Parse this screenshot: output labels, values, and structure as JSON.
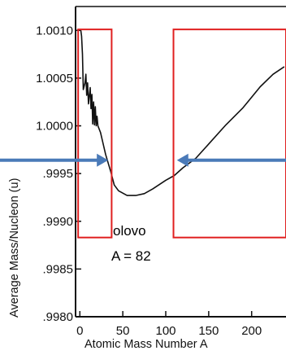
{
  "chart_data": {
    "type": "line",
    "xlabel": "Atomic Mass Number A",
    "ylabel": "Average Mass/Nucleon (u)",
    "xlim": [
      -5,
      240
    ],
    "ylim": [
      0.998,
      1.00125
    ],
    "x_ticks": [
      0,
      50,
      100,
      150,
      200
    ],
    "x_tick_labels": [
      "0",
      "50",
      "100",
      "150",
      "200"
    ],
    "y_ticks": [
      1.001,
      1.0005,
      1.0,
      0.9995,
      0.999,
      0.9985,
      0.998
    ],
    "y_tick_labels": [
      "1.0010",
      "1.0005",
      "1.0000",
      ".9995",
      ".9990",
      ".9985",
      ".9980"
    ],
    "grid": false,
    "series": [
      {
        "values_xy": [
          [
            1,
            1.00101
          ],
          [
            2,
            1.00094
          ],
          [
            3,
            1.00075
          ],
          [
            4,
            1.00038
          ],
          [
            6,
            1.00045
          ],
          [
            7,
            1.00054
          ],
          [
            8,
            1.00032
          ],
          [
            9,
            1.00045
          ],
          [
            10,
            1.00023
          ],
          [
            12,
            1.0004
          ],
          [
            13,
            1.00018
          ],
          [
            14,
            1.00033
          ],
          [
            15,
            1.00002
          ],
          [
            16,
            1.00025
          ],
          [
            17,
            1.00001
          ],
          [
            18,
            1.0002
          ],
          [
            19,
            1.0
          ],
          [
            20,
            1.0001
          ],
          [
            21,
            1.0
          ],
          [
            24,
            0.99993
          ],
          [
            30,
            0.9997
          ],
          [
            36,
            0.99952
          ],
          [
            40,
            0.99938
          ],
          [
            45,
            0.99932
          ],
          [
            55,
            0.99927
          ],
          [
            65,
            0.99927
          ],
          [
            75,
            0.99929
          ],
          [
            85,
            0.99934
          ],
          [
            100,
            0.99943
          ],
          [
            110,
            0.99948
          ],
          [
            120,
            0.99956
          ],
          [
            135,
            0.99966
          ],
          [
            150,
            0.99981
          ],
          [
            170,
            1.00001
          ],
          [
            190,
            1.00019
          ],
          [
            210,
            1.00041
          ],
          [
            225,
            1.00054
          ],
          [
            238,
            1.00062
          ]
        ]
      }
    ],
    "annotations": [
      {
        "text": "olovo"
      },
      {
        "text": "A = 82"
      }
    ],
    "highlight_boxes": [
      {
        "x_range": [
          -2,
          37
        ],
        "y_range": [
          0.99883,
          1.00101
        ],
        "color": "#e02020"
      },
      {
        "x_range": [
          109,
          240
        ],
        "y_range": [
          0.99883,
          1.00101
        ],
        "color": "#e02020"
      }
    ],
    "arrows": [
      {
        "at_x": 33,
        "pointing": "right",
        "color": "#4a7ab8"
      },
      {
        "at_x": 113,
        "pointing": "left",
        "color": "#4a7ab8"
      }
    ],
    "arrow_y": 0.99964
  }
}
